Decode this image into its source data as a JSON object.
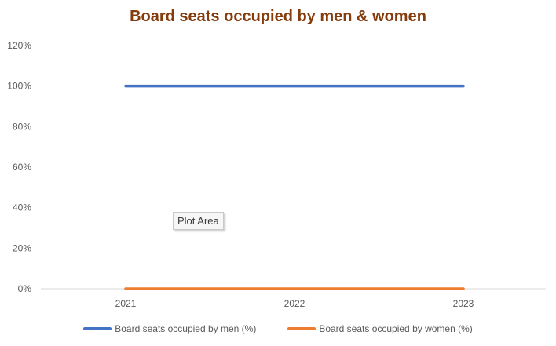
{
  "chart_data": {
    "type": "line",
    "title": "Board seats occupied by men & women",
    "categories": [
      "2021",
      "2022",
      "2023"
    ],
    "series": [
      {
        "name": "Board seats occupied by men (%)",
        "values": [
          100,
          100,
          100
        ],
        "color": "#4472c4"
      },
      {
        "name": "Board seats occupied by women (%)",
        "values": [
          0,
          0,
          0
        ],
        "color": "#ed7d31"
      }
    ],
    "y_ticks": [
      "0%",
      "20%",
      "40%",
      "60%",
      "80%",
      "100%",
      "120%"
    ],
    "ylim": [
      0,
      120
    ],
    "xlabel": "",
    "ylabel": "",
    "grid": false,
    "legend_position": "bottom",
    "title_color": "#843c0c"
  },
  "tooltip": {
    "text": "Plot Area"
  }
}
